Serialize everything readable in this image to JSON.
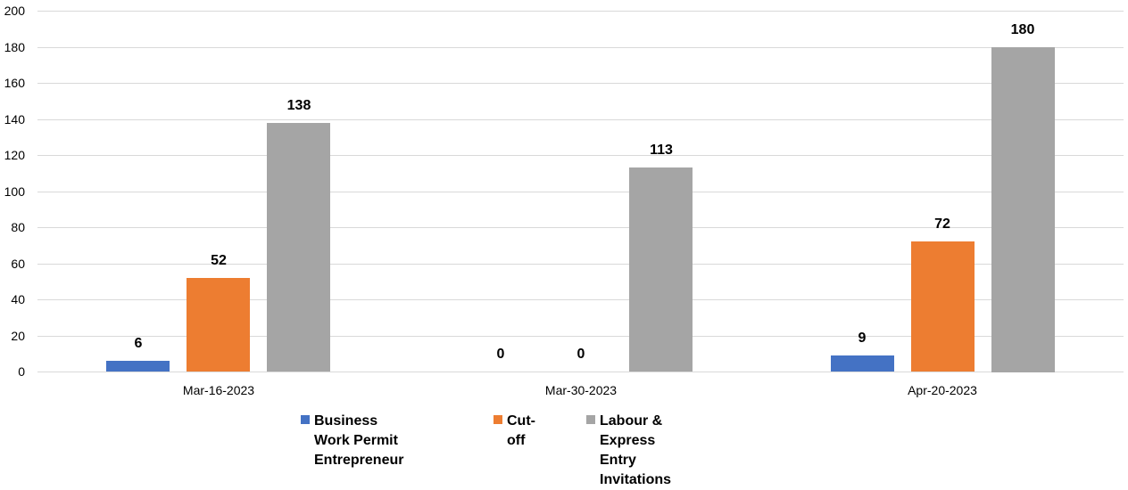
{
  "chart_data": {
    "type": "bar",
    "title": "",
    "xlabel": "",
    "ylabel": "",
    "ylim": [
      0,
      200
    ],
    "yticks": [
      0,
      20,
      40,
      60,
      80,
      100,
      120,
      140,
      160,
      180,
      200
    ],
    "grid": true,
    "legend_position": "bottom",
    "categories": [
      "Mar-16-2023",
      "Mar-30-2023",
      "Apr-20-2023"
    ],
    "series": [
      {
        "name": "Business Work Permit Entrepreneur",
        "color": "#4472c4",
        "values": [
          6,
          0,
          9
        ]
      },
      {
        "name": "Cut-off",
        "color": "#ed7d31",
        "values": [
          52,
          0,
          72
        ]
      },
      {
        "name": "Labour & Express Entry Invitations",
        "color": "#a5a5a5",
        "values": [
          138,
          113,
          180
        ]
      }
    ],
    "data_labels": true
  },
  "legend": {
    "items": [
      {
        "label_line1": "Business Work Permit",
        "label_line2": "Entrepreneur",
        "color": "#4472c4"
      },
      {
        "label_line1": "Cut-off",
        "label_line2": "",
        "color": "#ed7d31"
      },
      {
        "label_line1": "Labour & Express Entry Invitations",
        "label_line2": "",
        "color": "#a5a5a5"
      }
    ]
  }
}
